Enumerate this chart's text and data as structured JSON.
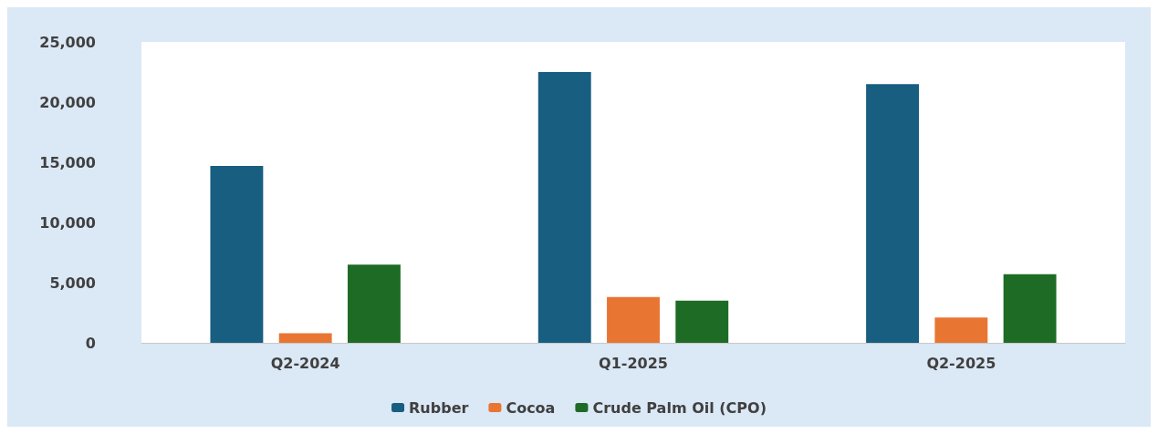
{
  "chart_data": {
    "type": "bar",
    "categories": [
      "Q2-2024",
      "Q1-2025",
      "Q2-2025"
    ],
    "series": [
      {
        "name": "Rubber",
        "color": "#175e80",
        "values": [
          14700,
          22500,
          21500
        ]
      },
      {
        "name": "Cocoa",
        "color": "#e97532",
        "values": [
          800,
          3800,
          2100
        ]
      },
      {
        "name": "Crude Palm Oil (CPO)",
        "color": "#1e6b25",
        "values": [
          6500,
          3500,
          5700
        ]
      }
    ],
    "ylim": [
      0,
      25000
    ],
    "yticks": [
      0,
      {
        "value": 5000,
        "label": "5,000"
      },
      {
        "value": 10000,
        "label": "10,000"
      },
      {
        "value": 15000,
        "label": "15,000"
      },
      {
        "value": 20000,
        "label": "20,000"
      },
      {
        "value": 25000,
        "label": "25,000"
      }
    ],
    "grid": false,
    "legend": "bottom"
  }
}
